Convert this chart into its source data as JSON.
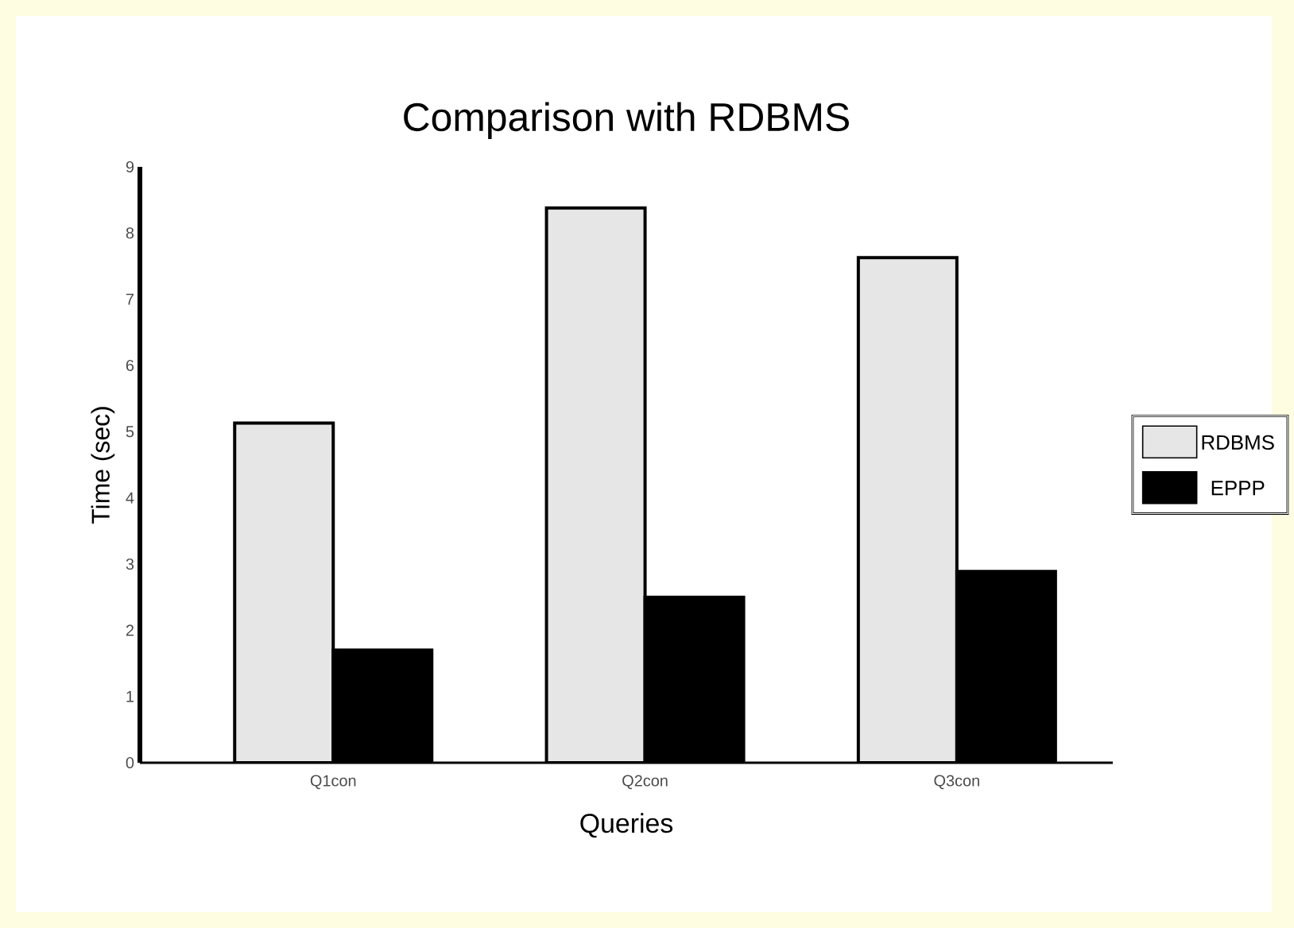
{
  "chart_data": {
    "type": "bar",
    "title": "Comparison with RDBMS",
    "xlabel": "Queries",
    "ylabel": "Time (sec)",
    "categories": [
      "Q1con",
      "Q2con",
      "Q3con"
    ],
    "series": [
      {
        "name": "RDBMS",
        "color": "#e6e6e6",
        "values": [
          5.13,
          8.38,
          7.63
        ]
      },
      {
        "name": "EPPP",
        "color": "#000000",
        "values": [
          1.7,
          2.5,
          2.89
        ]
      }
    ],
    "ylim": [
      0,
      9
    ],
    "yticks": [
      0,
      1,
      2,
      3,
      4,
      5,
      6,
      7,
      8,
      9
    ],
    "grid": false,
    "legend": "right"
  }
}
